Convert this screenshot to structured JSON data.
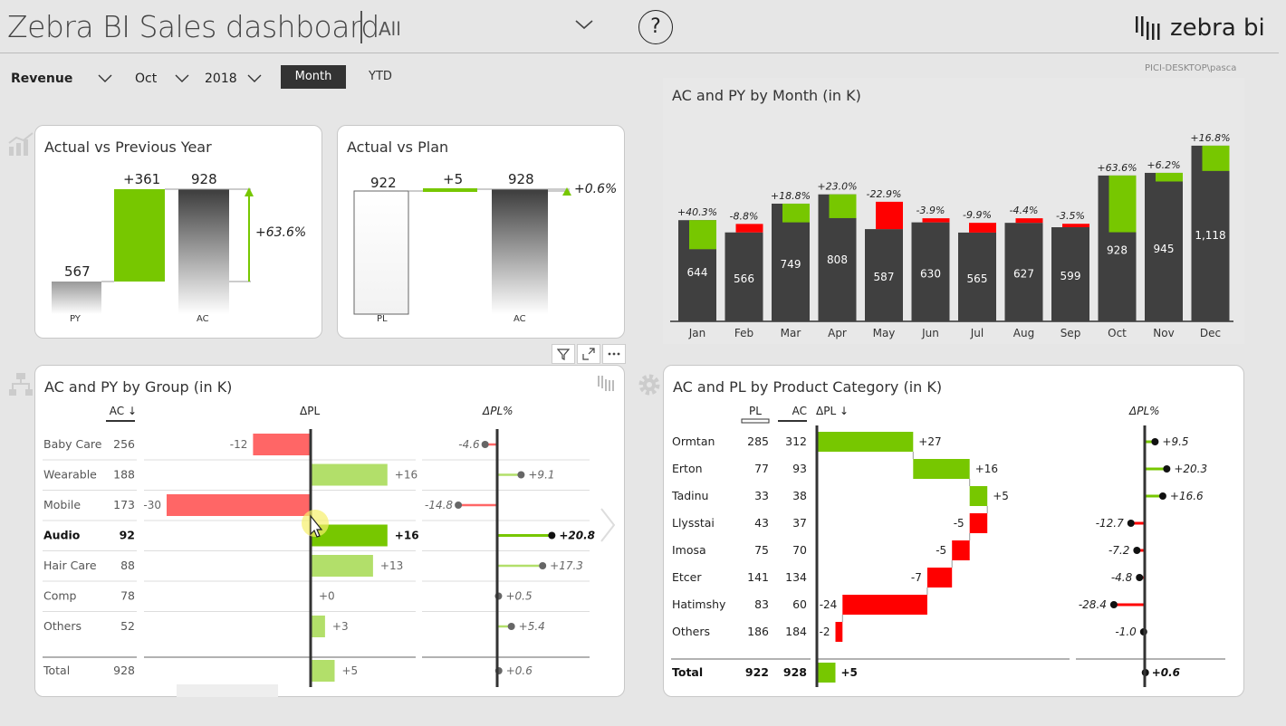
{
  "header": {
    "title": "Zebra BI Sales dashboard",
    "filter_value": "All",
    "help": "?",
    "logo_text": "zebra bi",
    "user": "PICI-DESKTOP\\pasca"
  },
  "controls": {
    "measure": "Revenue",
    "month": "Oct",
    "year": "2018",
    "month_btn": "Month",
    "ytd_btn": "YTD"
  },
  "colors": {
    "green": "#77c700",
    "light_green": "#b2df6a",
    "red": "#ff0000",
    "light_red": "#ff6666",
    "dark": "#404040"
  },
  "ac_vs_py": {
    "title": "Actual vs Previous Year",
    "py_value": "567",
    "delta": "+361",
    "ac_value": "928",
    "delta_pct": "+63.6%",
    "py_label": "PY",
    "ac_label": "AC"
  },
  "ac_vs_pl": {
    "title": "Actual vs Plan",
    "pl_value": "922",
    "delta": "+5",
    "ac_value": "928",
    "delta_pct": "+0.6%",
    "pl_label": "PL",
    "ac_label": "AC"
  },
  "chart_data": {
    "type": "bar",
    "title": "AC and PY by Month (in K)",
    "categories": [
      "Jan",
      "Feb",
      "Mar",
      "Apr",
      "May",
      "Jun",
      "Jul",
      "Aug",
      "Sep",
      "Oct",
      "Nov",
      "Dec"
    ],
    "series": [
      {
        "name": "AC",
        "values": [
          644,
          566,
          749,
          808,
          587,
          630,
          565,
          627,
          599,
          928,
          945,
          1118
        ]
      },
      {
        "name": "PY",
        "values": [
          459,
          620,
          630,
          657,
          761,
          656,
          627,
          656,
          621,
          567,
          890,
          957
        ]
      }
    ],
    "labels": [
      "644",
      "566",
      "749",
      "808",
      "587",
      "630",
      "565",
      "627",
      "599",
      "928",
      "945",
      "1,118"
    ],
    "deltas_pct": [
      "+40.3%",
      "-8.8%",
      "+18.8%",
      "+23.0%",
      "-22.9%",
      "-3.9%",
      "-9.9%",
      "-4.4%",
      "-3.5%",
      "+63.6%",
      "+6.2%",
      "+16.8%"
    ],
    "ylim": [
      0,
      1250
    ]
  },
  "group_table": {
    "title": "AC and PY by Group (in K)",
    "col_ac": "AC ↓",
    "col_dpl": "ΔPL",
    "col_dplpct": "ΔPL%",
    "rows": [
      {
        "name": "Baby Care",
        "ac": "256",
        "dpl": -12,
        "dpl_label": "-12",
        "pct": -4.6,
        "pct_label": "-4.6"
      },
      {
        "name": "Wearable",
        "ac": "188",
        "dpl": 16,
        "dpl_label": "+16",
        "pct": 9.1,
        "pct_label": "+9.1"
      },
      {
        "name": "Mobile",
        "ac": "173",
        "dpl": -30,
        "dpl_label": "-30",
        "pct": -14.8,
        "pct_label": "-14.8"
      },
      {
        "name": "Audio",
        "ac": "92",
        "dpl": 16,
        "dpl_label": "+16",
        "pct": 20.8,
        "pct_label": "+20.8",
        "bold": true
      },
      {
        "name": "Hair Care",
        "ac": "88",
        "dpl": 13,
        "dpl_label": "+13",
        "pct": 17.3,
        "pct_label": "+17.3"
      },
      {
        "name": "Comp",
        "ac": "78",
        "dpl": 0,
        "dpl_label": "+0",
        "pct": 0.5,
        "pct_label": "+0.5"
      },
      {
        "name": "Others",
        "ac": "52",
        "dpl": 3,
        "dpl_label": "+3",
        "pct": 5.4,
        "pct_label": "+5.4"
      }
    ],
    "total": {
      "name": "Total",
      "ac": "928",
      "dpl": 5,
      "dpl_label": "+5",
      "pct": 0.6,
      "pct_label": "+0.6"
    }
  },
  "product_table": {
    "title": "AC and PL by Product Category (in K)",
    "col_pl": "PL",
    "col_ac": "AC",
    "col_dpl": "ΔPL ↓",
    "col_dplpct": "ΔPL%",
    "rows": [
      {
        "name": "Ormtan",
        "pl": "285",
        "ac": "312",
        "dpl": 27,
        "dpl_label": "+27",
        "pct": 9.5,
        "pct_label": "+9.5"
      },
      {
        "name": "Erton",
        "pl": "77",
        "ac": "93",
        "dpl": 16,
        "dpl_label": "+16",
        "pct": 20.3,
        "pct_label": "+20.3"
      },
      {
        "name": "Tadinu",
        "pl": "33",
        "ac": "38",
        "dpl": 5,
        "dpl_label": "+5",
        "pct": 16.6,
        "pct_label": "+16.6"
      },
      {
        "name": "Llysstai",
        "pl": "43",
        "ac": "37",
        "dpl": -5,
        "dpl_label": "-5",
        "pct": -12.7,
        "pct_label": "-12.7"
      },
      {
        "name": "Imosa",
        "pl": "75",
        "ac": "70",
        "dpl": -5,
        "dpl_label": "-5",
        "pct": -7.2,
        "pct_label": "-7.2"
      },
      {
        "name": "Etcer",
        "pl": "141",
        "ac": "134",
        "dpl": -7,
        "dpl_label": "-7",
        "pct": -4.8,
        "pct_label": "-4.8"
      },
      {
        "name": "Hatimshy",
        "pl": "83",
        "ac": "60",
        "dpl": -24,
        "dpl_label": "-24",
        "pct": -28.4,
        "pct_label": "-28.4"
      },
      {
        "name": "Others",
        "pl": "186",
        "ac": "184",
        "dpl": -2,
        "dpl_label": "-2",
        "pct": -1.0,
        "pct_label": "-1.0"
      }
    ],
    "total": {
      "name": "Total",
      "pl": "922",
      "ac": "928",
      "dpl": 5,
      "dpl_label": "+5",
      "pct": 0.6,
      "pct_label": "+0.6"
    }
  }
}
